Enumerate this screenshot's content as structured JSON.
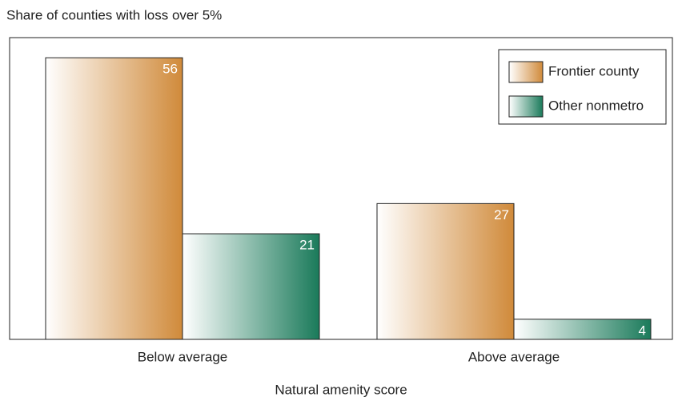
{
  "chart_data": {
    "type": "bar",
    "title": "Share of counties with loss over 5%",
    "x_label": "Natural amenity score",
    "categories": [
      "Below average",
      "Above average"
    ],
    "series": [
      {
        "name": "Frontier county",
        "color": "#d08a3a",
        "values": [
          56,
          27
        ]
      },
      {
        "name": "Other nonmetro",
        "color": "#1a7a5a",
        "values": [
          21,
          4
        ]
      }
    ],
    "ylim": [
      0,
      60
    ],
    "legend": "upper right"
  }
}
